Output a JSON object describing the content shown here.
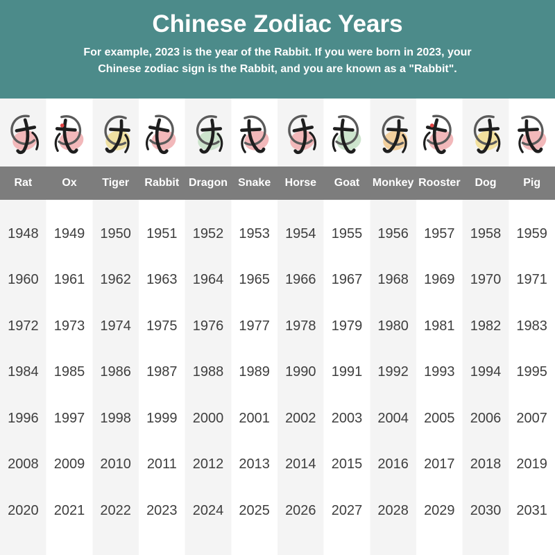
{
  "header": {
    "title": "Chinese Zodiac Years",
    "subtitle_line1": "For example, 2023 is the year of the Rabbit. If you were born in 2023, your",
    "subtitle_line2": "Chinese zodiac sign is the Rabbit, and you are known as a \"Rabbit\".",
    "background_color": "#4c8b8a"
  },
  "colors": {
    "name_bar": "#7d7d7d",
    "stripe": "#f4f4f4",
    "year_text": "#3e3e3e"
  },
  "columns": [
    {
      "name": "Rat",
      "glyph": "子",
      "blob_color": "#f2b8ba"
    },
    {
      "name": "Ox",
      "glyph": "丑",
      "blob_color": "#f2b8ba",
      "accent": "#e04545"
    },
    {
      "name": "Tiger",
      "glyph": "寅",
      "blob_color": "#efe0a2"
    },
    {
      "name": "Rabbit",
      "glyph": "卯",
      "blob_color": "#f2b8ba"
    },
    {
      "name": "Dragon",
      "glyph": "辰",
      "blob_color": "#cde4cd"
    },
    {
      "name": "Snake",
      "glyph": "巳",
      "blob_color": "#f2b8ba"
    },
    {
      "name": "Horse",
      "glyph": "午",
      "blob_color": "#f2b8ba"
    },
    {
      "name": "Goat",
      "glyph": "未",
      "blob_color": "#cde4cd"
    },
    {
      "name": "Monkey",
      "glyph": "申",
      "blob_color": "#f3d09e"
    },
    {
      "name": "Rooster",
      "glyph": "酉",
      "blob_color": "#f2b8ba",
      "accent": "#e04545"
    },
    {
      "name": "Dog",
      "glyph": "戌",
      "blob_color": "#f3e19e"
    },
    {
      "name": "Pig",
      "glyph": "亥",
      "blob_color": "#f2b8ba"
    }
  ],
  "years": [
    [
      1948,
      1949,
      1950,
      1951,
      1952,
      1953,
      1954,
      1955,
      1956,
      1957,
      1958,
      1959
    ],
    [
      1960,
      1961,
      1962,
      1963,
      1964,
      1965,
      1966,
      1967,
      1968,
      1969,
      1970,
      1971
    ],
    [
      1972,
      1973,
      1974,
      1975,
      1976,
      1977,
      1978,
      1979,
      1980,
      1981,
      1982,
      1983
    ],
    [
      1984,
      1985,
      1986,
      1987,
      1988,
      1989,
      1990,
      1991,
      1992,
      1993,
      1994,
      1995
    ],
    [
      1996,
      1997,
      1998,
      1999,
      2000,
      2001,
      2002,
      2003,
      2004,
      2005,
      2006,
      2007
    ],
    [
      2008,
      2009,
      2010,
      2011,
      2012,
      2013,
      2014,
      2015,
      2016,
      2017,
      2018,
      2019
    ],
    [
      2020,
      2021,
      2022,
      2023,
      2024,
      2025,
      2026,
      2027,
      2028,
      2029,
      2030,
      2031
    ]
  ]
}
